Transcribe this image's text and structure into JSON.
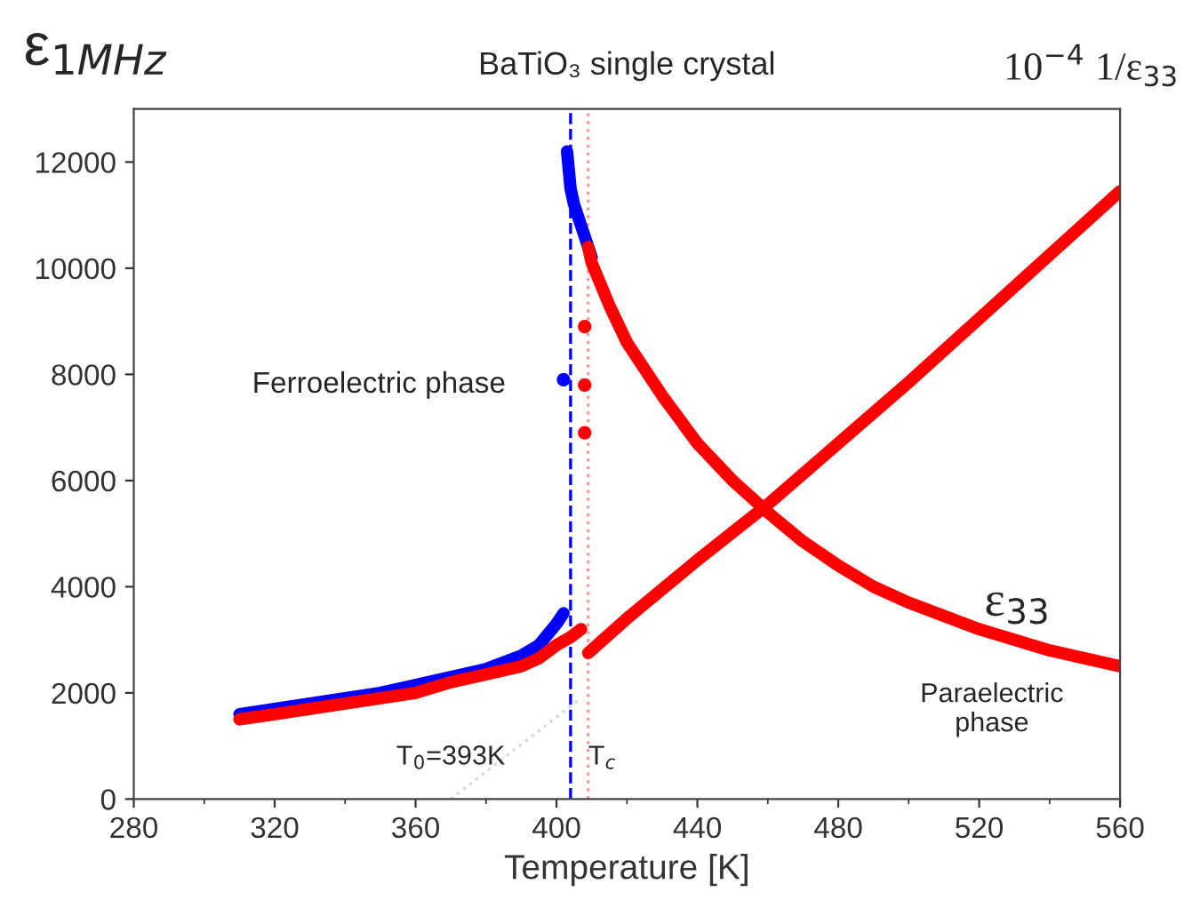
{
  "chart_data": {
    "type": "line",
    "title": "BaTiO₃ single crystal",
    "xlabel": "Temperature [K]",
    "ylabel": "ε$_{1MHz}$",
    "annotations": [
      "Ferroelectric phase",
      "Paraelectric phase",
      "ε$_{33}$",
      "10$^{−4}$ 1/ε$_{33}$",
      {
        "text": "T$_{0}$=393K",
        "x": 370,
        "y": 0
      },
      {
        "text": "T$_{c}$",
        "x": 409,
        "y": 0
      }
    ],
    "xlim": [
      280,
      560
    ],
    "xticks": [
      280,
      320,
      360,
      400,
      440,
      480,
      520,
      560
    ],
    "ylim": [
      0,
      13000
    ],
    "yticks": [
      0,
      2000,
      4000,
      6000,
      8000,
      10000,
      12000
    ],
    "grid": false,
    "legend": false,
    "line_style": "solid",
    "series": [
      {
        "color": "#0000ff",
        "x": [
          310,
          320,
          330,
          340,
          350,
          360,
          370,
          380,
          390,
          395,
          400,
          402
        ],
        "values": [
          1600,
          1700,
          1800,
          1900,
          2000,
          2150,
          2300,
          2450,
          2700,
          2900,
          3300,
          3500
        ]
      },
      {
        "color": "#0000ff",
        "x": [
          403,
          404,
          405,
          406,
          408,
          410
        ],
        "values": [
          12200,
          11500,
          11200,
          11000,
          10600,
          10200
        ]
      },
      {
        "type": "scatter",
        "marker": "circle",
        "color": "#0000ff",
        "x": [
          402
        ],
        "values": [
          7900
        ]
      },
      {
        "color": "#ff0000",
        "x": [
          310,
          320,
          330,
          340,
          350,
          360,
          370,
          380,
          390,
          395,
          400,
          404,
          407
        ],
        "values": [
          1500,
          1600,
          1700,
          1800,
          1900,
          2000,
          2200,
          2350,
          2500,
          2650,
          2900,
          3050,
          3200
        ]
      },
      {
        "color": "#ff0000",
        "x": [
          409,
          410,
          415,
          420,
          430,
          440,
          450,
          460,
          470,
          480,
          490,
          500,
          520,
          540,
          560
        ],
        "values": [
          10400,
          10100,
          9300,
          8600,
          7600,
          6700,
          6000,
          5400,
          4850,
          4400,
          4000,
          3700,
          3200,
          2800,
          2500
        ]
      },
      {
        "type": "scatter",
        "marker": "circle",
        "color": "#ff0000",
        "x": [
          408,
          408,
          408
        ],
        "values": [
          8900,
          7800,
          6900
        ]
      },
      {
        "color": "#ff0000",
        "x": [
          409,
          420,
          440,
          460,
          480,
          500,
          520,
          540,
          560
        ],
        "values": [
          2750,
          3400,
          4500,
          5550,
          6700,
          7850,
          9050,
          10250,
          11450
        ]
      },
      {
        "color": "#d8d8d8",
        "line_style": "dotted",
        "x": [
          370,
          407
        ],
        "values": [
          0,
          1900
        ]
      }
    ],
    "ref_lines": [
      {
        "axis": "x",
        "value": 404,
        "color": "#0000ff",
        "line_style": "dashed"
      },
      {
        "axis": "x",
        "value": 409,
        "color": "#ff9999",
        "line_style": "dotted"
      }
    ]
  }
}
